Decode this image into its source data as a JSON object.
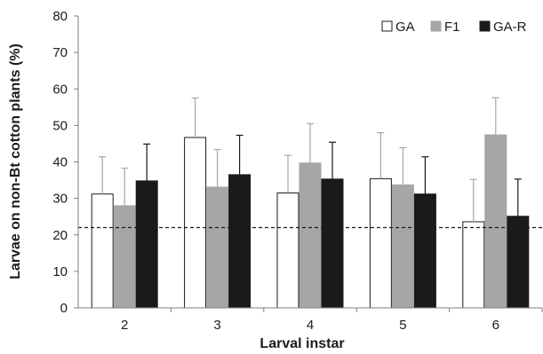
{
  "chart_data": {
    "type": "bar",
    "xlabel": "Larval instar",
    "ylabel": "Larvae on non-Bt  cotton plants (%)",
    "categories": [
      "2",
      "3",
      "4",
      "5",
      "6"
    ],
    "ylim": [
      0,
      80
    ],
    "yticks": [
      "0",
      "10",
      "20",
      "30",
      "40",
      "50",
      "60",
      "70",
      "80"
    ],
    "legend_position": "top-right",
    "reference_line": 22,
    "series": [
      {
        "name": "GA",
        "color": "#ffffff",
        "stroke": "#1a1a1a",
        "values": [
          31.2,
          46.7,
          31.5,
          35.4,
          23.6
        ],
        "errors": [
          10.2,
          10.8,
          10.3,
          12.6,
          11.6
        ]
      },
      {
        "name": "F1",
        "color": "#a6a6a6",
        "stroke": "#a6a6a6",
        "values": [
          28.0,
          33.1,
          39.7,
          33.7,
          47.4
        ],
        "errors": [
          10.3,
          10.3,
          10.8,
          10.2,
          10.2
        ]
      },
      {
        "name": "GA-R",
        "color": "#1a1a1a",
        "stroke": "#1a1a1a",
        "values": [
          34.8,
          36.5,
          35.3,
          31.2,
          25.1
        ],
        "errors": [
          10.1,
          10.8,
          10.1,
          10.2,
          10.2
        ]
      }
    ]
  }
}
